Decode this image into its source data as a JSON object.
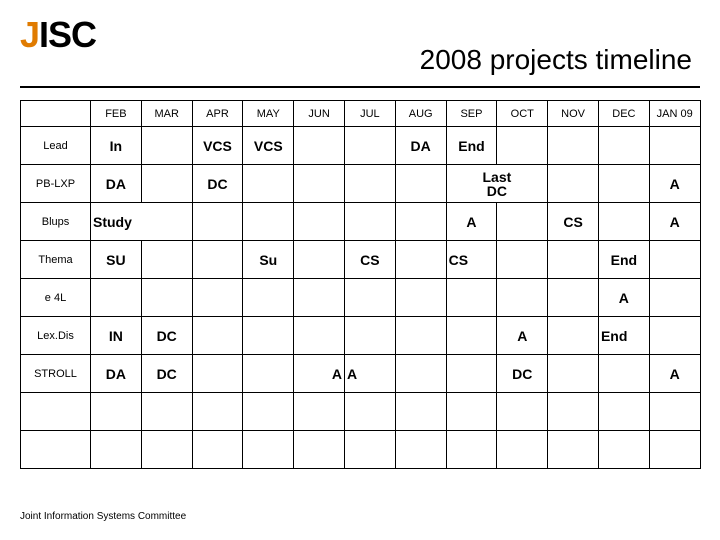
{
  "logo_text": "JISC",
  "logo_color_1": "#e07b00",
  "logo_color_2": "#000000",
  "title": "2008 projects timeline",
  "footer": "Joint Information Systems Committee",
  "months": [
    "FEB",
    "MAR",
    "APR",
    "MAY",
    "JUN",
    "JUL",
    "AUG",
    "SEP",
    "OCT",
    "NOV",
    "DEC",
    "JAN 09"
  ],
  "rows": [
    {
      "label": "Lead",
      "cells": [
        {
          "text": "In",
          "bold": true
        },
        {
          "text": ""
        },
        {
          "text": "VCS",
          "bold": true
        },
        {
          "text": "VCS",
          "bold": true
        },
        {
          "text": ""
        },
        {
          "text": ""
        },
        {
          "text": "DA",
          "bold": true
        },
        {
          "text": "End",
          "bold": true
        },
        {
          "text": ""
        },
        {
          "text": ""
        },
        {
          "text": ""
        },
        {
          "text": ""
        }
      ]
    },
    {
      "label": "PB-LXP",
      "cells": [
        {
          "text": "DA",
          "bold": true
        },
        {
          "text": ""
        },
        {
          "text": "DC",
          "bold": true
        },
        {
          "text": ""
        },
        {
          "text": ""
        },
        {
          "text": ""
        },
        {
          "text": ""
        },
        {
          "text": "Last DC",
          "bold": true,
          "span": 2
        },
        {
          "text": ""
        },
        {
          "text": ""
        },
        {
          "text": ""
        },
        {
          "text": "A",
          "bold": true
        }
      ]
    },
    {
      "label": "Blups",
      "cells": [
        {
          "text": "Study",
          "bold": true,
          "span": 2,
          "align": "left"
        },
        {
          "text": ""
        },
        {
          "text": ""
        },
        {
          "text": ""
        },
        {
          "text": ""
        },
        {
          "text": ""
        },
        {
          "text": ""
        },
        {
          "text": "A",
          "bold": true
        },
        {
          "text": ""
        },
        {
          "text": "CS",
          "bold": true
        },
        {
          "text": ""
        },
        {
          "text": "A",
          "bold": true
        }
      ]
    },
    {
      "label": "Thema",
      "cells": [
        {
          "text": "SU",
          "bold": true
        },
        {
          "text": ""
        },
        {
          "text": ""
        },
        {
          "text": "Su",
          "bold": true
        },
        {
          "text": ""
        },
        {
          "text": "CS",
          "bold": true
        },
        {
          "text": ""
        },
        {
          "text": "CS",
          "bold": true,
          "align": "left"
        },
        {
          "text": ""
        },
        {
          "text": ""
        },
        {
          "text": "End",
          "bold": true
        },
        {
          "text": ""
        }
      ]
    },
    {
      "label": "e 4L",
      "cells": [
        {
          "text": ""
        },
        {
          "text": ""
        },
        {
          "text": ""
        },
        {
          "text": ""
        },
        {
          "text": ""
        },
        {
          "text": ""
        },
        {
          "text": ""
        },
        {
          "text": ""
        },
        {
          "text": ""
        },
        {
          "text": ""
        },
        {
          "text": "A",
          "bold": true
        },
        {
          "text": ""
        }
      ]
    },
    {
      "label": "Lex.Dis",
      "cells": [
        {
          "text": "IN",
          "bold": true
        },
        {
          "text": "DC",
          "bold": true
        },
        {
          "text": ""
        },
        {
          "text": ""
        },
        {
          "text": ""
        },
        {
          "text": ""
        },
        {
          "text": ""
        },
        {
          "text": ""
        },
        {
          "text": "A",
          "bold": true
        },
        {
          "text": ""
        },
        {
          "text": "End",
          "bold": true,
          "align": "left"
        },
        {
          "text": ""
        }
      ]
    },
    {
      "label": "STROLL",
      "cells": [
        {
          "text": "DA",
          "bold": true
        },
        {
          "text": "DC",
          "bold": true
        },
        {
          "text": ""
        },
        {
          "text": ""
        },
        {
          "text": "A",
          "bold": true,
          "align": "right"
        },
        {
          "text": "A",
          "bold": true,
          "align": "left"
        },
        {
          "text": ""
        },
        {
          "text": ""
        },
        {
          "text": "DC",
          "bold": true
        },
        {
          "text": ""
        },
        {
          "text": ""
        },
        {
          "text": "A",
          "bold": true
        }
      ]
    },
    {
      "label": "",
      "cells": [
        {
          "text": ""
        },
        {
          "text": ""
        },
        {
          "text": ""
        },
        {
          "text": ""
        },
        {
          "text": ""
        },
        {
          "text": ""
        },
        {
          "text": ""
        },
        {
          "text": ""
        },
        {
          "text": ""
        },
        {
          "text": ""
        },
        {
          "text": ""
        },
        {
          "text": ""
        }
      ]
    },
    {
      "label": "",
      "cells": [
        {
          "text": ""
        },
        {
          "text": ""
        },
        {
          "text": ""
        },
        {
          "text": ""
        },
        {
          "text": ""
        },
        {
          "text": ""
        },
        {
          "text": ""
        },
        {
          "text": ""
        },
        {
          "text": ""
        },
        {
          "text": ""
        },
        {
          "text": ""
        },
        {
          "text": ""
        }
      ]
    }
  ]
}
